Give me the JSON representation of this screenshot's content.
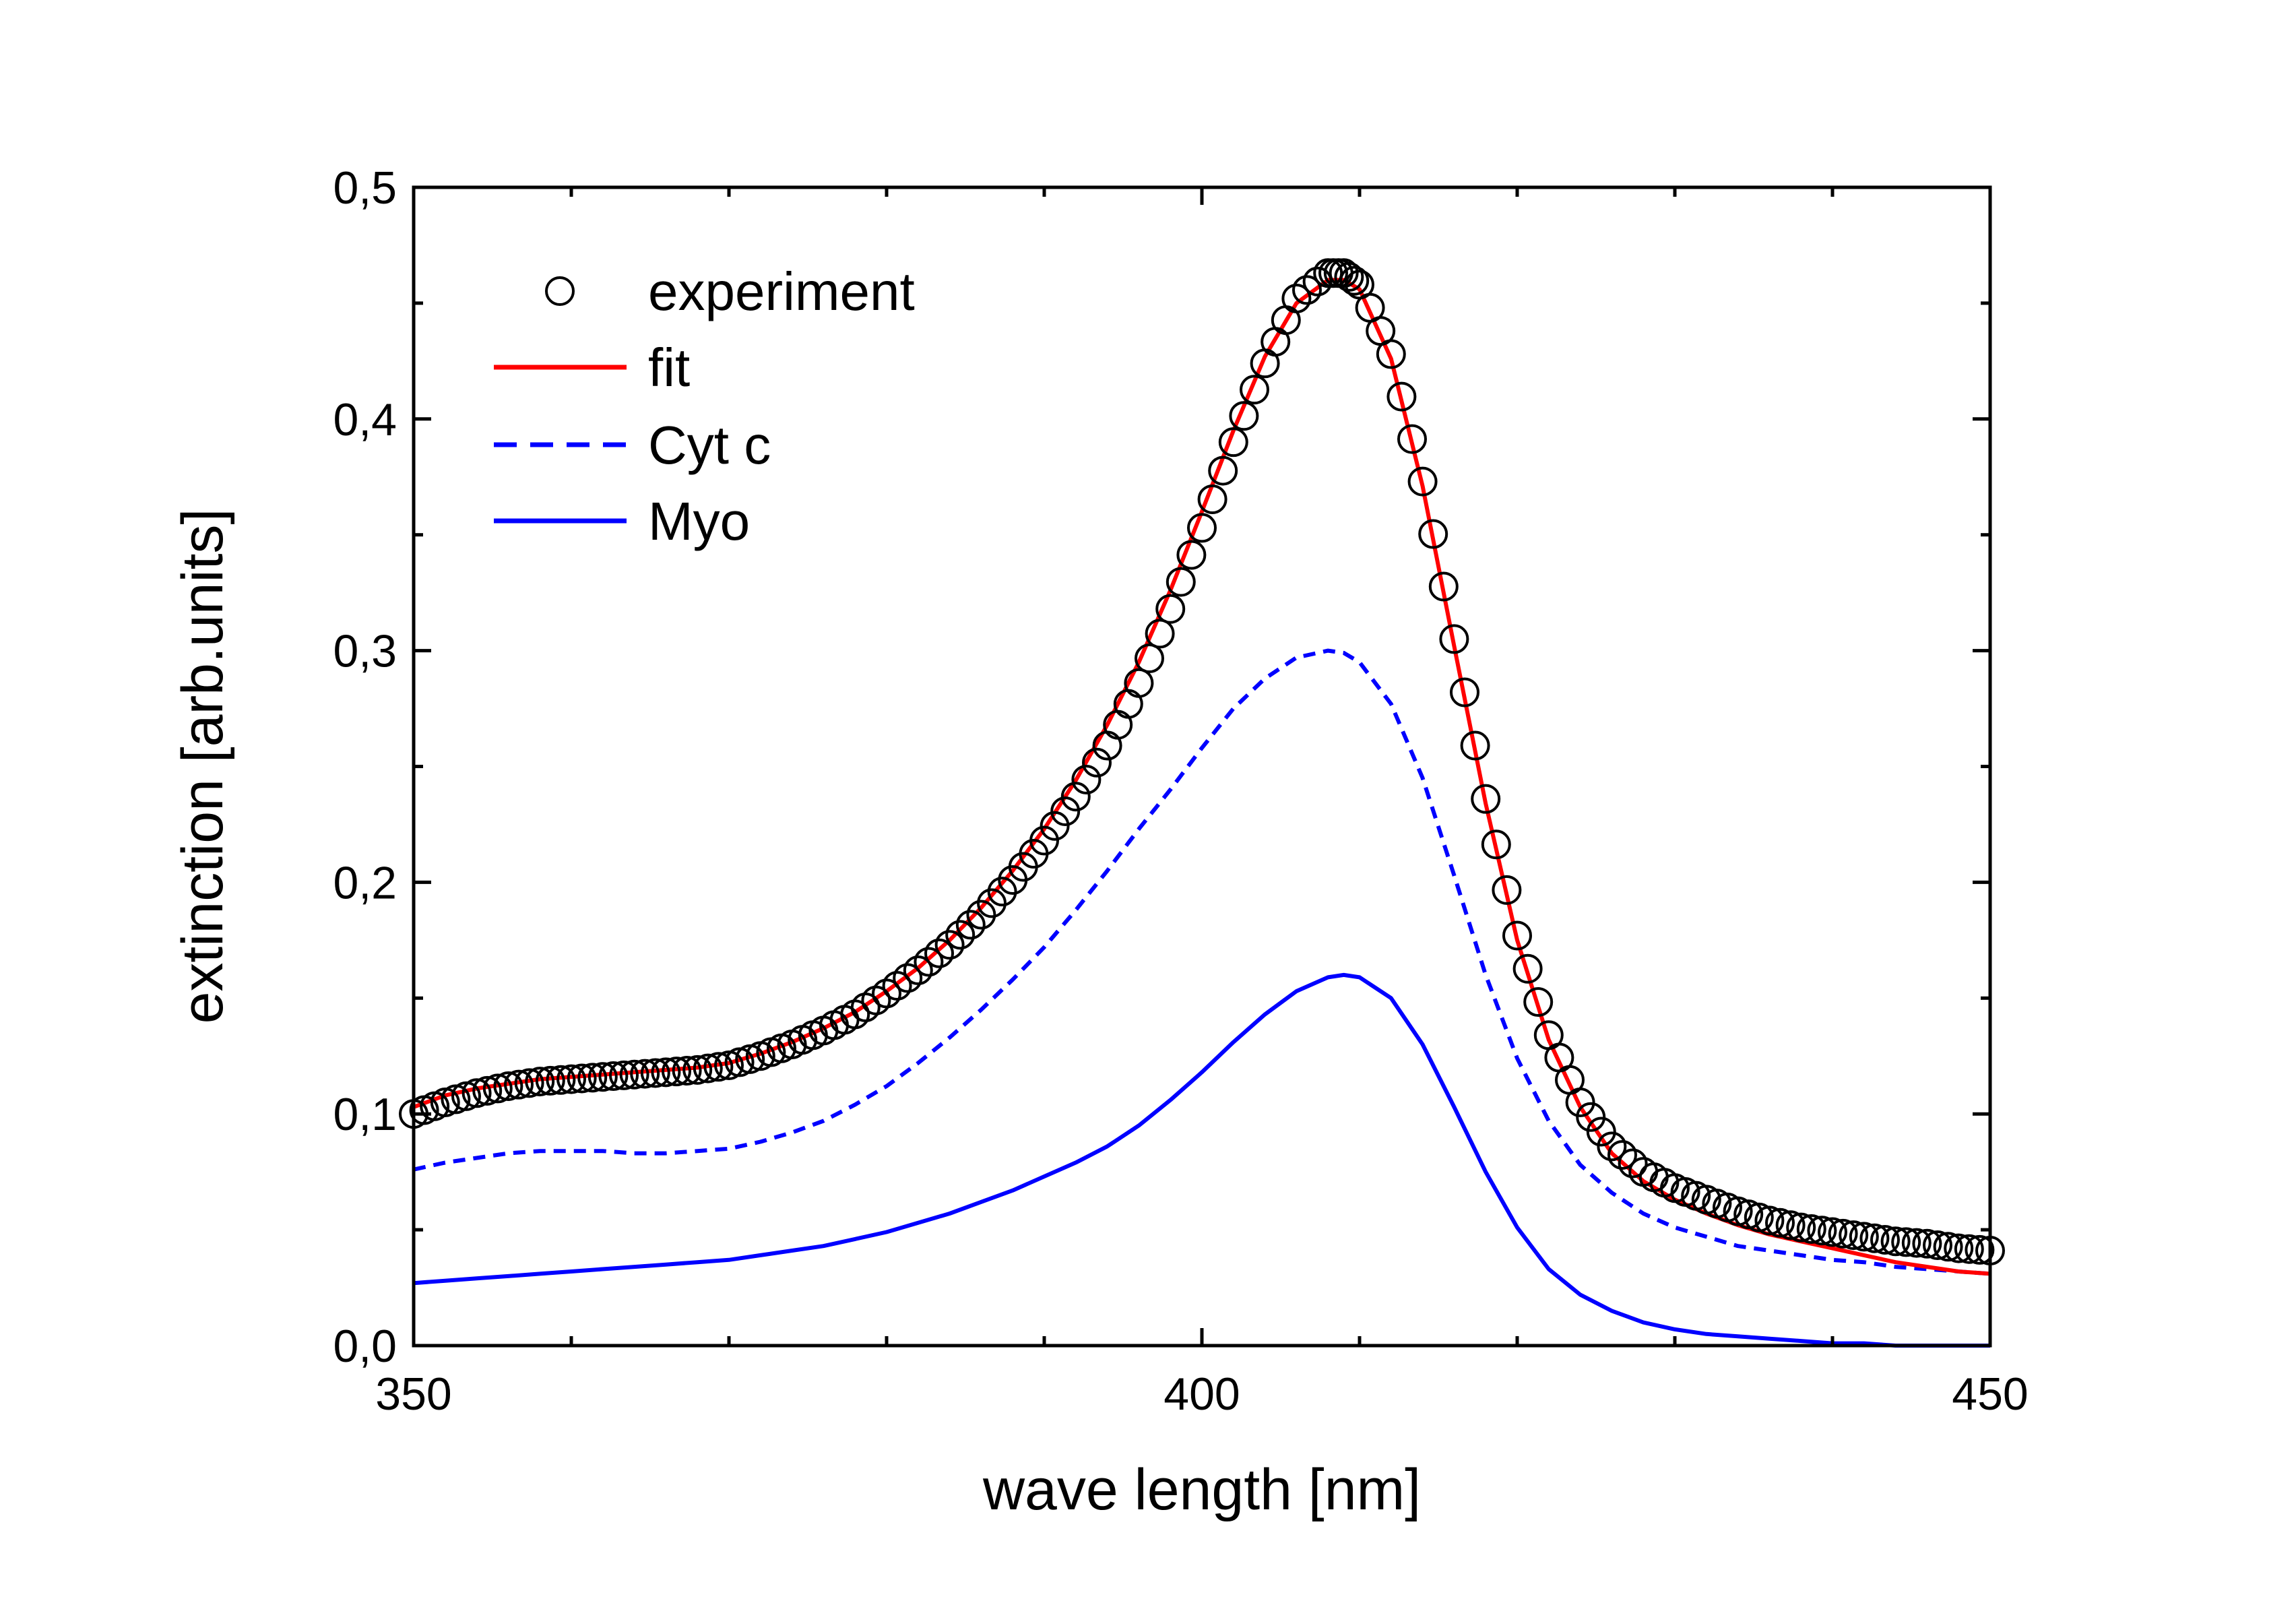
{
  "chart_data": {
    "type": "line",
    "title": "",
    "xlabel": "wave length [nm]",
    "ylabel": "extinction [arb.units]",
    "xlim": [
      350,
      450
    ],
    "ylim": [
      0,
      0.5
    ],
    "x_ticks": [
      "350",
      "400",
      "450"
    ],
    "y_ticks": [
      "0,0",
      "0,1",
      "0,2",
      "0,3",
      "0,4",
      "0,5"
    ],
    "grid": false,
    "legend_position": "top-left",
    "x": [
      350,
      352,
      354,
      356,
      358,
      360,
      362,
      364,
      366,
      368,
      370,
      372,
      374,
      376,
      378,
      380,
      382,
      384,
      386,
      388,
      390,
      392,
      394,
      396,
      398,
      400,
      402,
      404,
      406,
      408,
      409,
      410,
      412,
      414,
      416,
      418,
      420,
      422,
      424,
      426,
      428,
      430,
      432,
      434,
      436,
      438,
      440,
      442,
      444,
      446,
      448,
      450
    ],
    "series": [
      {
        "name": "experiment",
        "style": "open-circles",
        "color": "#000000",
        "values": [
          0.1,
          0.105,
          0.109,
          0.112,
          0.114,
          0.115,
          0.116,
          0.117,
          0.118,
          0.119,
          0.121,
          0.125,
          0.13,
          0.136,
          0.143,
          0.152,
          0.162,
          0.173,
          0.186,
          0.201,
          0.218,
          0.237,
          0.259,
          0.286,
          0.318,
          0.353,
          0.39,
          0.424,
          0.452,
          0.463,
          0.463,
          0.458,
          0.428,
          0.373,
          0.305,
          0.236,
          0.177,
          0.134,
          0.105,
          0.086,
          0.075,
          0.068,
          0.063,
          0.058,
          0.054,
          0.051,
          0.049,
          0.047,
          0.045,
          0.044,
          0.042,
          0.041
        ]
      },
      {
        "name": "fit",
        "style": "solid",
        "color": "#ff0000",
        "values": [
          0.103,
          0.108,
          0.111,
          0.113,
          0.115,
          0.116,
          0.117,
          0.118,
          0.119,
          0.12,
          0.122,
          0.126,
          0.131,
          0.137,
          0.144,
          0.153,
          0.163,
          0.175,
          0.189,
          0.205,
          0.223,
          0.244,
          0.268,
          0.295,
          0.326,
          0.36,
          0.395,
          0.427,
          0.45,
          0.46,
          0.46,
          0.456,
          0.426,
          0.371,
          0.302,
          0.234,
          0.175,
          0.132,
          0.103,
          0.083,
          0.071,
          0.063,
          0.057,
          0.052,
          0.048,
          0.045,
          0.042,
          0.039,
          0.036,
          0.034,
          0.032,
          0.031
        ]
      },
      {
        "name": "Cyt c",
        "style": "dashed",
        "color": "#0000ff",
        "values": [
          0.076,
          0.079,
          0.081,
          0.083,
          0.084,
          0.084,
          0.084,
          0.083,
          0.083,
          0.084,
          0.085,
          0.088,
          0.092,
          0.097,
          0.104,
          0.112,
          0.122,
          0.133,
          0.145,
          0.158,
          0.172,
          0.188,
          0.205,
          0.223,
          0.24,
          0.258,
          0.275,
          0.288,
          0.297,
          0.3,
          0.299,
          0.295,
          0.277,
          0.245,
          0.203,
          0.16,
          0.124,
          0.097,
          0.078,
          0.066,
          0.057,
          0.051,
          0.047,
          0.043,
          0.041,
          0.039,
          0.037,
          0.036,
          0.034,
          0.033,
          0.032,
          0.031
        ]
      },
      {
        "name": "Myo",
        "style": "solid",
        "color": "#0000ff",
        "values": [
          0.027,
          0.028,
          0.029,
          0.03,
          0.031,
          0.032,
          0.033,
          0.034,
          0.035,
          0.036,
          0.037,
          0.039,
          0.041,
          0.043,
          0.046,
          0.049,
          0.053,
          0.057,
          0.062,
          0.067,
          0.073,
          0.079,
          0.086,
          0.095,
          0.106,
          0.118,
          0.131,
          0.143,
          0.153,
          0.159,
          0.16,
          0.159,
          0.15,
          0.13,
          0.103,
          0.075,
          0.051,
          0.033,
          0.022,
          0.015,
          0.01,
          0.007,
          0.005,
          0.004,
          0.003,
          0.002,
          0.001,
          0.001,
          0.0,
          0.0,
          0.0,
          0.0
        ]
      }
    ]
  }
}
